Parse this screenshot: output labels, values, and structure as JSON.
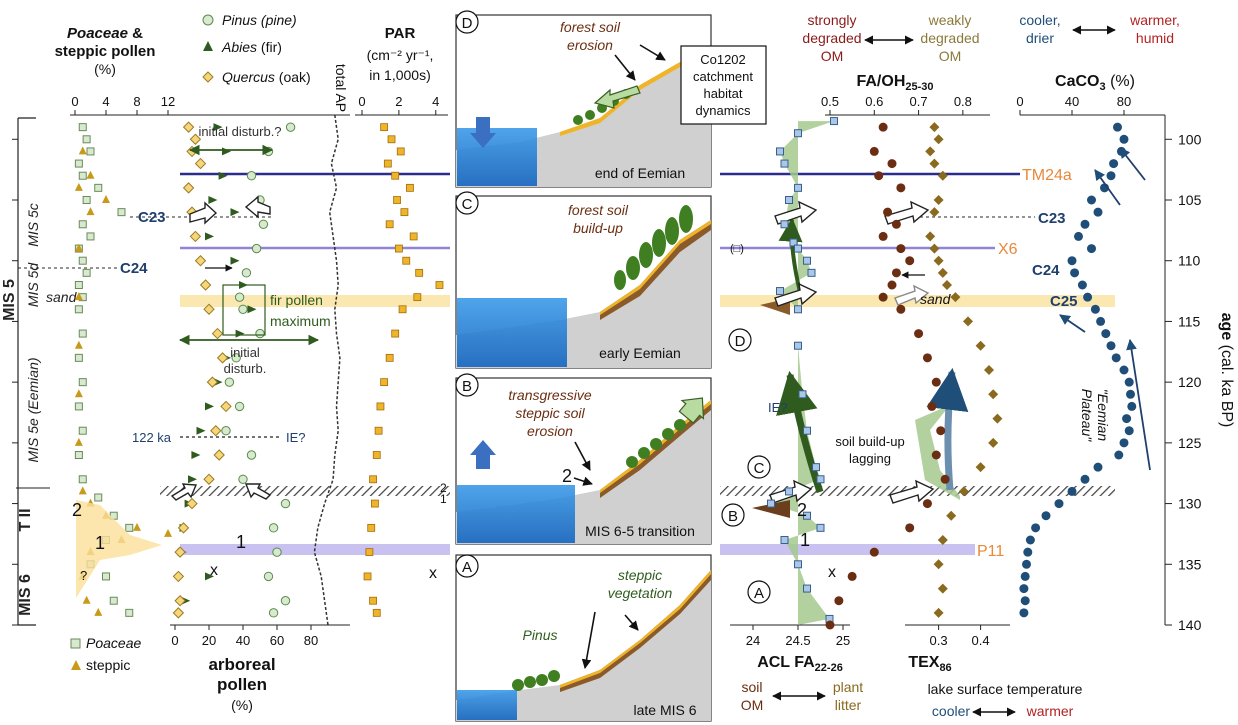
{
  "chart_data": {
    "type": "scatter",
    "age_axis": {
      "label": "age",
      "label_unit": "(cal. ka BP)",
      "range": [
        98,
        140
      ],
      "ticks": [
        "100",
        "105",
        "110",
        "115",
        "120",
        "125",
        "130",
        "135",
        "140"
      ]
    },
    "stages": {
      "mis5c": "MIS 5c",
      "mis5d": "MIS 5d",
      "sand": "sand",
      "mis5": "MIS 5",
      "mis5e": "MIS 5e (Eemian)",
      "t2": "T II",
      "mis6": "MIS 6"
    },
    "panel_poaceae": {
      "title1": "Poaceae",
      "title_amp": " &",
      "title2": "steppic pollen",
      "unit": "(%)",
      "ticks": [
        "0",
        "4",
        "8",
        "12"
      ],
      "xlim": [
        0,
        12
      ],
      "poaceae": [
        [
          1,
          99
        ],
        [
          1.5,
          100
        ],
        [
          2,
          101
        ],
        [
          0.5,
          102
        ],
        [
          1,
          103
        ],
        [
          3,
          104
        ],
        [
          1.5,
          105
        ],
        [
          6,
          106
        ],
        [
          1,
          107
        ],
        [
          2,
          108
        ],
        [
          0.5,
          109
        ],
        [
          1,
          110
        ],
        [
          1.5,
          111
        ],
        [
          0.5,
          112
        ],
        [
          1,
          113
        ],
        [
          0.5,
          114
        ],
        [
          1,
          116
        ],
        [
          0.5,
          118
        ],
        [
          1,
          120
        ],
        [
          0.5,
          122
        ],
        [
          1,
          124
        ],
        [
          0.5,
          126
        ],
        [
          1,
          128
        ],
        [
          3,
          129.5
        ],
        [
          5,
          131
        ],
        [
          7,
          132
        ],
        [
          4,
          133
        ],
        [
          2,
          135
        ],
        [
          4,
          136
        ],
        [
          5,
          138
        ],
        [
          7,
          139
        ]
      ],
      "steppic": [
        [
          1,
          101
        ],
        [
          2,
          103
        ],
        [
          0.5,
          104
        ],
        [
          4,
          105
        ],
        [
          2,
          106
        ],
        [
          0.5,
          109
        ],
        [
          0.5,
          113
        ],
        [
          0.5,
          117
        ],
        [
          0.5,
          121
        ],
        [
          0.5,
          125
        ],
        [
          1,
          129
        ],
        [
          2,
          130
        ],
        [
          4,
          131
        ],
        [
          8,
          132
        ],
        [
          12,
          132.5
        ],
        [
          6,
          133
        ],
        [
          2,
          134
        ],
        [
          1,
          136
        ],
        [
          1.5,
          138
        ],
        [
          3,
          139
        ]
      ],
      "c23": "C23",
      "c24": "C24",
      "ka122": "122 ka",
      "lab1": "1",
      "lab2": "2",
      "q": "?",
      "legend_poaceae": "Poaceae",
      "legend_steppic": "steppic"
    },
    "panel_arboreal": {
      "legend_pinus": "Pinus",
      "legend_pinus_sub": " (pine)",
      "legend_abies": "Abies",
      "legend_abies_sub": " (fir)",
      "legend_quercus": "Quercus",
      "legend_quercus_sub": " (oak)",
      "xlabel1": "arboreal",
      "xlabel2": "pollen",
      "xunit": "(%)",
      "ticks": [
        "0",
        "20",
        "40",
        "60",
        "80"
      ],
      "xlim": [
        0,
        100
      ],
      "pinus": [
        [
          68,
          99
        ],
        [
          55,
          101
        ],
        [
          45,
          103
        ],
        [
          50,
          105
        ],
        [
          52,
          107
        ],
        [
          48,
          109
        ],
        [
          42,
          111
        ],
        [
          38,
          113
        ],
        [
          40,
          114
        ],
        [
          50,
          116
        ],
        [
          36,
          118
        ],
        [
          32,
          120
        ],
        [
          38,
          122
        ],
        [
          30,
          124
        ],
        [
          45,
          126
        ],
        [
          40,
          128
        ],
        [
          65,
          130
        ],
        [
          58,
          132
        ],
        [
          60,
          134
        ],
        [
          55,
          136
        ],
        [
          65,
          138
        ],
        [
          58,
          139
        ]
      ],
      "abies": [
        [
          25,
          99
        ],
        [
          30,
          101
        ],
        [
          28,
          103
        ],
        [
          22,
          105
        ],
        [
          35,
          106
        ],
        [
          20,
          108
        ],
        [
          35,
          110
        ],
        [
          40,
          112
        ],
        [
          45,
          114
        ],
        [
          38,
          116
        ],
        [
          30,
          118
        ],
        [
          25,
          120
        ],
        [
          20,
          122
        ],
        [
          15,
          124
        ],
        [
          12,
          126
        ],
        [
          10,
          128
        ],
        [
          8,
          130
        ],
        [
          5,
          132
        ],
        [
          4,
          134
        ],
        [
          20,
          136
        ],
        [
          6,
          138
        ]
      ],
      "quercus": [
        [
          8,
          99
        ],
        [
          12,
          100
        ],
        [
          10,
          101
        ],
        [
          15,
          102
        ],
        [
          8,
          104
        ],
        [
          10,
          106
        ],
        [
          12,
          108
        ],
        [
          15,
          110
        ],
        [
          18,
          112
        ],
        [
          20,
          114
        ],
        [
          25,
          116
        ],
        [
          28,
          118
        ],
        [
          22,
          120
        ],
        [
          30,
          122
        ],
        [
          24,
          124
        ],
        [
          26,
          126
        ],
        [
          20,
          128
        ],
        [
          10,
          130
        ],
        [
          5,
          132
        ],
        [
          3,
          134
        ],
        [
          2,
          136
        ],
        [
          3,
          138
        ],
        [
          2,
          139
        ]
      ],
      "total_ap_label": "total AP",
      "total_ap": [
        [
          94,
          98
        ],
        [
          96,
          100
        ],
        [
          92,
          102
        ],
        [
          95,
          104
        ],
        [
          91,
          106
        ],
        [
          93,
          108
        ],
        [
          95,
          110
        ],
        [
          96,
          112
        ],
        [
          94,
          114
        ],
        [
          95,
          116
        ],
        [
          97,
          118
        ],
        [
          96,
          120
        ],
        [
          95,
          122
        ],
        [
          96,
          124
        ],
        [
          94,
          126
        ],
        [
          93,
          128
        ],
        [
          88,
          130
        ],
        [
          84,
          132
        ],
        [
          82,
          134
        ],
        [
          86,
          136
        ],
        [
          88,
          138
        ],
        [
          90,
          140
        ]
      ],
      "initial_disturb_q": "initial disturb.?",
      "fir_max1": "fir pollen",
      "fir_max2": "maximum",
      "initial_disturb1": "initial",
      "initial_disturb2": "disturb.",
      "ie": "IE?",
      "x_mark": "x",
      "lab1": "1"
    },
    "panel_par": {
      "title": "PAR",
      "unit_line1": "(cm⁻² yr⁻¹,",
      "unit_line2": "in 1,000s)",
      "ticks": [
        "0",
        "2",
        "4"
      ],
      "xlim": [
        0,
        4.5
      ],
      "values": [
        [
          1.2,
          99
        ],
        [
          1.6,
          100
        ],
        [
          2.1,
          101
        ],
        [
          1.4,
          102
        ],
        [
          1.8,
          103
        ],
        [
          2.6,
          104
        ],
        [
          1.9,
          105
        ],
        [
          2.3,
          106
        ],
        [
          1.5,
          107
        ],
        [
          2.8,
          108
        ],
        [
          2.0,
          109
        ],
        [
          2.4,
          110
        ],
        [
          3.1,
          111
        ],
        [
          4.2,
          112
        ],
        [
          3.0,
          113
        ],
        [
          2.2,
          114
        ],
        [
          1.8,
          116
        ],
        [
          1.5,
          118
        ],
        [
          1.2,
          120
        ],
        [
          1.0,
          122
        ],
        [
          0.9,
          124
        ],
        [
          0.8,
          126
        ],
        [
          0.6,
          128
        ],
        [
          0.7,
          130
        ],
        [
          0.5,
          132
        ],
        [
          0.4,
          134
        ],
        [
          0.3,
          136
        ],
        [
          0.6,
          138
        ],
        [
          0.8,
          139
        ]
      ],
      "x_mark": "x"
    },
    "events": {
      "tm24a": "TM24a",
      "x6": "X6",
      "c23": "C23",
      "c24": "C24",
      "c25": "C25",
      "p11": "P11",
      "t2_2": "2",
      "t2_1": "1"
    },
    "scenes": {
      "D": {
        "letter": "D",
        "caption": "end of Eemian",
        "note1": "forest soil",
        "note2": "erosion"
      },
      "C": {
        "letter": "C",
        "caption": "early Eemian",
        "note1": "forest soil",
        "note2": "build-up"
      },
      "B": {
        "letter": "B",
        "caption": "MIS 6-5 transition",
        "note1": "transgressive",
        "note2": "steppic soil",
        "note3": "erosion",
        "num": "2"
      },
      "A": {
        "letter": "A",
        "caption": "late MIS 6",
        "note1": "steppic",
        "note2": "vegetation",
        "pinus": "Pinus"
      },
      "box": [
        "Co1202",
        "catchment",
        "habitat",
        "dynamics"
      ]
    },
    "panel_acl": {
      "xlabel": "ACL FA",
      "xlabel_sub": "22-26",
      "ticks": [
        "24",
        "24.5",
        "25"
      ],
      "xlim": [
        23.8,
        25.1
      ],
      "values": [
        [
          24.9,
          98.5
        ],
        [
          24.5,
          99.5
        ],
        [
          24.3,
          101
        ],
        [
          24.35,
          102
        ],
        [
          24.5,
          104
        ],
        [
          24.4,
          105
        ],
        [
          24.35,
          107
        ],
        [
          24.45,
          108.5
        ],
        [
          24.5,
          109
        ],
        [
          24.6,
          110
        ],
        [
          24.65,
          111
        ],
        [
          24.3,
          112.5
        ],
        [
          24.5,
          114
        ],
        [
          24.5,
          117
        ],
        [
          24.55,
          121
        ],
        [
          24.6,
          124
        ],
        [
          24.7,
          127
        ],
        [
          24.75,
          128
        ],
        [
          24.4,
          129
        ],
        [
          24.2,
          130
        ],
        [
          24.6,
          131
        ],
        [
          24.75,
          132
        ],
        [
          24.35,
          133
        ],
        [
          24.5,
          135
        ],
        [
          24.6,
          137
        ],
        [
          24.85,
          139.5
        ]
      ],
      "left_note1": "soil",
      "left_note2": "OM",
      "right_note1": "plant",
      "right_note2": "litter",
      "ie": "IE?",
      "lag1": "soil build-up",
      "lag2": "lagging",
      "circ_D": "D",
      "circ_C": "C",
      "circ_B": "B",
      "circ_A": "A",
      "lab2": "2",
      "lab1": "1",
      "x_mark": "x",
      "paren": "(□)"
    },
    "panel_fa": {
      "title1": "strongly",
      "title2": "degraded",
      "title3": "OM",
      "title4": "weakly",
      "title5": "degraded",
      "title6": "OM",
      "xlabel": "FA/OH",
      "xlabel_sub": "25-30",
      "ticks": [
        "0.5",
        "0.6",
        "0.7",
        "0.8"
      ],
      "xlim": [
        0.5,
        0.85
      ],
      "values": [
        [
          0.62,
          99
        ],
        [
          0.6,
          101
        ],
        [
          0.64,
          102
        ],
        [
          0.61,
          103
        ],
        [
          0.66,
          104
        ],
        [
          0.63,
          106
        ],
        [
          0.65,
          107
        ],
        [
          0.62,
          108
        ],
        [
          0.66,
          109
        ],
        [
          0.68,
          110
        ],
        [
          0.65,
          111
        ],
        [
          0.64,
          112
        ],
        [
          0.62,
          113
        ],
        [
          0.66,
          114
        ],
        [
          0.7,
          116
        ],
        [
          0.72,
          118
        ],
        [
          0.74,
          120
        ],
        [
          0.73,
          122
        ],
        [
          0.75,
          124
        ],
        [
          0.74,
          126
        ],
        [
          0.76,
          128
        ],
        [
          0.72,
          130
        ],
        [
          0.68,
          132
        ],
        [
          0.6,
          134
        ],
        [
          0.55,
          136
        ],
        [
          0.52,
          138
        ],
        [
          0.5,
          140
        ]
      ],
      "sand": "sand",
      "paren": "(□)"
    },
    "panel_tex": {
      "xlabel": "TEX",
      "xlabel_sub": "86",
      "ticks": [
        "0.3",
        "0.4"
      ],
      "xlim": [
        0.22,
        0.47
      ],
      "values": [
        [
          0.29,
          99
        ],
        [
          0.3,
          100
        ],
        [
          0.28,
          101
        ],
        [
          0.29,
          102
        ],
        [
          0.31,
          103
        ],
        [
          0.3,
          105
        ],
        [
          0.29,
          106
        ],
        [
          0.28,
          108
        ],
        [
          0.29,
          109
        ],
        [
          0.3,
          110
        ],
        [
          0.31,
          111
        ],
        [
          0.32,
          112
        ],
        [
          0.34,
          113
        ],
        [
          0.37,
          115
        ],
        [
          0.4,
          117
        ],
        [
          0.42,
          119
        ],
        [
          0.43,
          121
        ],
        [
          0.44,
          123
        ],
        [
          0.43,
          125
        ],
        [
          0.4,
          127
        ],
        [
          0.36,
          129
        ],
        [
          0.33,
          131
        ],
        [
          0.31,
          133
        ],
        [
          0.3,
          135
        ],
        [
          0.31,
          137
        ],
        [
          0.3,
          139
        ]
      ],
      "line1": "lake surface temperature",
      "cool": "cooler",
      "warm": "warmer"
    },
    "panel_caco3": {
      "title_cool1": "cooler,",
      "title_cool2": "drier",
      "title_warm1": "warmer,",
      "title_warm2": "humid",
      "xlabel": "CaCO",
      "xlabel_sub": "3",
      "xlabel_unit": " (%)",
      "ticks": [
        "0",
        "40",
        "80"
      ],
      "xlim": [
        0,
        100
      ],
      "plateau1": "\"Eemian",
      "plateau2": "Plateau\"",
      "values": [
        [
          75,
          99
        ],
        [
          80,
          100
        ],
        [
          78,
          101
        ],
        [
          72,
          102
        ],
        [
          70,
          103
        ],
        [
          65,
          104
        ],
        [
          55,
          105
        ],
        [
          60,
          106
        ],
        [
          50,
          107
        ],
        [
          45,
          108
        ],
        [
          55,
          109
        ],
        [
          40,
          110
        ],
        [
          42,
          111
        ],
        [
          48,
          112
        ],
        [
          52,
          113
        ],
        [
          58,
          114
        ],
        [
          62,
          115
        ],
        [
          66,
          116
        ],
        [
          70,
          117
        ],
        [
          74,
          118
        ],
        [
          80,
          119
        ],
        [
          84,
          120
        ],
        [
          85,
          121
        ],
        [
          86,
          122
        ],
        [
          82,
          123
        ],
        [
          84,
          124
        ],
        [
          80,
          125
        ],
        [
          76,
          126
        ],
        [
          60,
          127
        ],
        [
          50,
          128
        ],
        [
          40,
          129
        ],
        [
          30,
          130
        ],
        [
          20,
          131
        ],
        [
          12,
          132
        ],
        [
          8,
          133
        ],
        [
          6,
          134
        ],
        [
          5,
          135
        ],
        [
          4,
          136
        ],
        [
          3,
          137
        ],
        [
          4,
          138
        ],
        [
          3,
          139
        ]
      ]
    },
    "colors": {
      "green": "#2f5c1e",
      "pinus_fill": "#d7ead0",
      "quercus_fill": "#f5d77a",
      "par_fill": "#f0b429",
      "steppic": "#c99a19",
      "brown": "#6b2e12",
      "olive": "#8a6a1e",
      "navy": "#1f4e79",
      "red": "#b22222",
      "tm24a_line": "#2c2c8c",
      "x6_line": "#8f84d8",
      "p11_band": "#c9c1ef",
      "sand_band": "#fbe8b0",
      "water": "#1e88e5"
    }
  }
}
